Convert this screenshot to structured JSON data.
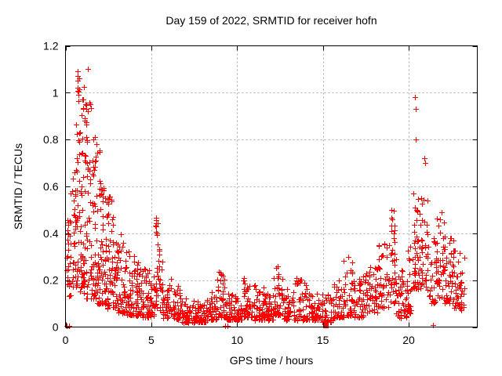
{
  "page": {
    "background": "#ffffff",
    "description": "gnuplot-style scatter plot window"
  },
  "chart_data": {
    "type": "scatter",
    "title": "Day 159 of 2022, SRMTID for receiver hofn",
    "xlabel": "GPS time / hours",
    "ylabel": "SRMTID / TECUs",
    "xlim": [
      0,
      24
    ],
    "ylim": [
      0,
      1.2
    ],
    "xticks": {
      "values": [
        0,
        5,
        10,
        15,
        20
      ],
      "labels": [
        "0",
        "5",
        "10",
        "15",
        "20"
      ]
    },
    "yticks": {
      "values": [
        0,
        0.2,
        0.4,
        0.6,
        0.8,
        1.0,
        1.2
      ],
      "labels": [
        "0",
        "0.2",
        "0.4",
        "0.6",
        "0.8",
        "1",
        "1.2"
      ]
    },
    "grid": {
      "show": true,
      "color": "#aaaaaa"
    },
    "frame_color": "#000000",
    "text_color": "#000000",
    "legend": "none",
    "series": [
      {
        "name": "srmtid",
        "marker": "plus",
        "color": "#ff0000",
        "seed": 20220159,
        "approx_point_count": 1870,
        "density_bins": [
          [
            0.02,
            0.3,
            26,
            0.13,
            0.46,
            1.4
          ],
          [
            0.3,
            0.6,
            30,
            0.17,
            0.66,
            1.4
          ],
          [
            0.6,
            0.9,
            46,
            0.15,
            1.1,
            1.45
          ],
          [
            0.9,
            1.2,
            46,
            0.13,
            1.08,
            1.5
          ],
          [
            1.2,
            1.5,
            40,
            0.12,
            0.96,
            1.55
          ],
          [
            1.5,
            1.8,
            40,
            0.12,
            0.84,
            1.5
          ],
          [
            1.8,
            2.1,
            40,
            0.1,
            0.76,
            1.5
          ],
          [
            2.1,
            2.4,
            38,
            0.1,
            0.62,
            1.5
          ],
          [
            2.4,
            2.7,
            36,
            0.08,
            0.56,
            1.5
          ],
          [
            2.7,
            3.0,
            34,
            0.08,
            0.47,
            1.6
          ],
          [
            3.0,
            3.5,
            50,
            0.06,
            0.41,
            1.8
          ],
          [
            3.5,
            4.0,
            48,
            0.05,
            0.33,
            1.8
          ],
          [
            4.0,
            4.5,
            46,
            0.05,
            0.28,
            1.7
          ],
          [
            4.5,
            5.0,
            42,
            0.04,
            0.25,
            1.8
          ],
          [
            5.0,
            5.2,
            14,
            0.05,
            0.22,
            1.8
          ],
          [
            5.2,
            5.45,
            26,
            0.08,
            0.47,
            1.5
          ],
          [
            5.45,
            5.7,
            20,
            0.06,
            0.36,
            1.6
          ],
          [
            5.7,
            6.2,
            36,
            0.04,
            0.22,
            1.9
          ],
          [
            6.2,
            6.8,
            40,
            0.03,
            0.18,
            2.0
          ],
          [
            6.8,
            7.6,
            56,
            0.02,
            0.13,
            1.8
          ],
          [
            7.6,
            8.4,
            56,
            0.02,
            0.12,
            1.8
          ],
          [
            8.4,
            8.8,
            30,
            0.03,
            0.15,
            1.8
          ],
          [
            8.8,
            9.3,
            36,
            0.04,
            0.235,
            1.9
          ],
          [
            9.3,
            9.8,
            32,
            0.03,
            0.16,
            1.9
          ],
          [
            9.8,
            10.3,
            36,
            0.03,
            0.15,
            1.8
          ],
          [
            10.3,
            11.0,
            50,
            0.04,
            0.21,
            1.9
          ],
          [
            11.0,
            11.6,
            42,
            0.03,
            0.18,
            1.9
          ],
          [
            11.6,
            12.1,
            36,
            0.03,
            0.15,
            1.8
          ],
          [
            12.1,
            12.7,
            42,
            0.05,
            0.26,
            1.9
          ],
          [
            12.7,
            13.3,
            40,
            0.03,
            0.17,
            1.8
          ],
          [
            13.3,
            14.1,
            52,
            0.03,
            0.21,
            1.9
          ],
          [
            14.1,
            14.9,
            50,
            0.03,
            0.15,
            1.8
          ],
          [
            14.9,
            15.6,
            42,
            0.02,
            0.14,
            1.8
          ],
          [
            15.6,
            16.2,
            40,
            0.04,
            0.2,
            1.8
          ],
          [
            16.2,
            16.8,
            40,
            0.05,
            0.3,
            1.9
          ],
          [
            16.8,
            17.5,
            46,
            0.04,
            0.22,
            1.8
          ],
          [
            17.5,
            18.2,
            46,
            0.06,
            0.26,
            1.7
          ],
          [
            18.2,
            18.8,
            40,
            0.08,
            0.36,
            1.7
          ],
          [
            18.8,
            19.25,
            36,
            0.1,
            0.5,
            1.6
          ],
          [
            19.25,
            19.9,
            46,
            0.04,
            0.28,
            1.8
          ],
          [
            19.9,
            20.25,
            24,
            0.06,
            0.35,
            1.7
          ],
          [
            20.25,
            20.6,
            42,
            0.16,
            0.68,
            1.5
          ],
          [
            20.6,
            21.2,
            40,
            0.15,
            0.58,
            1.5
          ],
          [
            21.2,
            21.6,
            26,
            0.1,
            0.38,
            1.6
          ],
          [
            21.6,
            22.1,
            40,
            0.12,
            0.49,
            1.5
          ],
          [
            22.1,
            22.6,
            40,
            0.1,
            0.4,
            1.6
          ],
          [
            22.6,
            23.0,
            30,
            0.08,
            0.35,
            1.6
          ],
          [
            23.0,
            23.25,
            18,
            0.07,
            0.32,
            1.5
          ]
        ],
        "points": [
          [
            0.7,
            1.09
          ],
          [
            0.72,
            1.05
          ],
          [
            0.73,
            1.02
          ],
          [
            0.7,
            1.07
          ],
          [
            0.75,
            0.99
          ],
          [
            0.97,
            0.97
          ],
          [
            1.32,
            1.1
          ],
          [
            1.05,
            0.93
          ],
          [
            1.1,
            0.88
          ],
          [
            1.45,
            0.95
          ],
          [
            0.52,
            0.66
          ],
          [
            5.3,
            0.465
          ],
          [
            5.28,
            0.43
          ],
          [
            5.33,
            0.4
          ],
          [
            8.95,
            0.235
          ],
          [
            12.35,
            0.26
          ],
          [
            16.5,
            0.3
          ],
          [
            19.0,
            0.5
          ],
          [
            19.05,
            0.46
          ],
          [
            20.38,
            0.98
          ],
          [
            20.42,
            0.93
          ],
          [
            20.4,
            0.8
          ],
          [
            20.9,
            0.72
          ],
          [
            20.95,
            0.7
          ],
          [
            21.1,
            0.54
          ],
          [
            21.9,
            0.49
          ],
          [
            0.08,
            0.004
          ],
          [
            0.2,
            0.004
          ],
          [
            9.32,
            0.004
          ],
          [
            9.45,
            0.004
          ],
          [
            21.4,
            0.01
          ]
        ]
      },
      {
        "name": "flag",
        "marker": "filled-square",
        "color": "#ff0000",
        "points": [
          [
            15.15,
            0
          ]
        ]
      }
    ]
  }
}
